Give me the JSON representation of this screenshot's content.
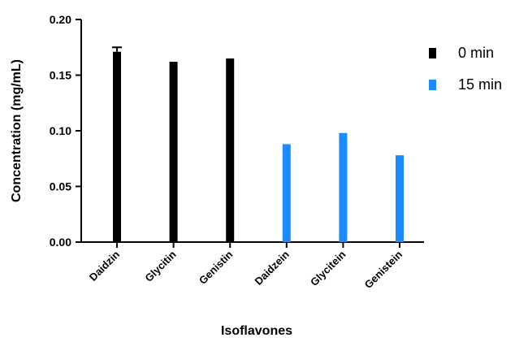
{
  "chart_data": {
    "type": "bar",
    "title": "",
    "xlabel": "Isoflavones",
    "ylabel": "Concentration (mg/mL)",
    "ylim": [
      0,
      0.2
    ],
    "yticks": [
      "0.00",
      "0.05",
      "0.10",
      "0.15",
      "0.20"
    ],
    "yticks_values": [
      0,
      0.05,
      0.1,
      0.15,
      0.2
    ],
    "categories": [
      "Daidzin",
      "Glycitin",
      "Genistin",
      "Daidzein",
      "Glycitein",
      "Genistein"
    ],
    "series": [
      {
        "name": "0 min",
        "color": "#000000",
        "values": [
          0.171,
          0.162,
          0.165,
          null,
          null,
          null
        ],
        "errors": [
          0.004,
          null,
          null,
          null,
          null,
          null
        ]
      },
      {
        "name": "15 min",
        "color": "#1a8cff",
        "values": [
          null,
          null,
          null,
          0.088,
          0.098,
          0.078
        ],
        "errors": [
          null,
          null,
          null,
          null,
          null,
          null
        ]
      }
    ],
    "legend_position": "top-right",
    "grid": false
  }
}
